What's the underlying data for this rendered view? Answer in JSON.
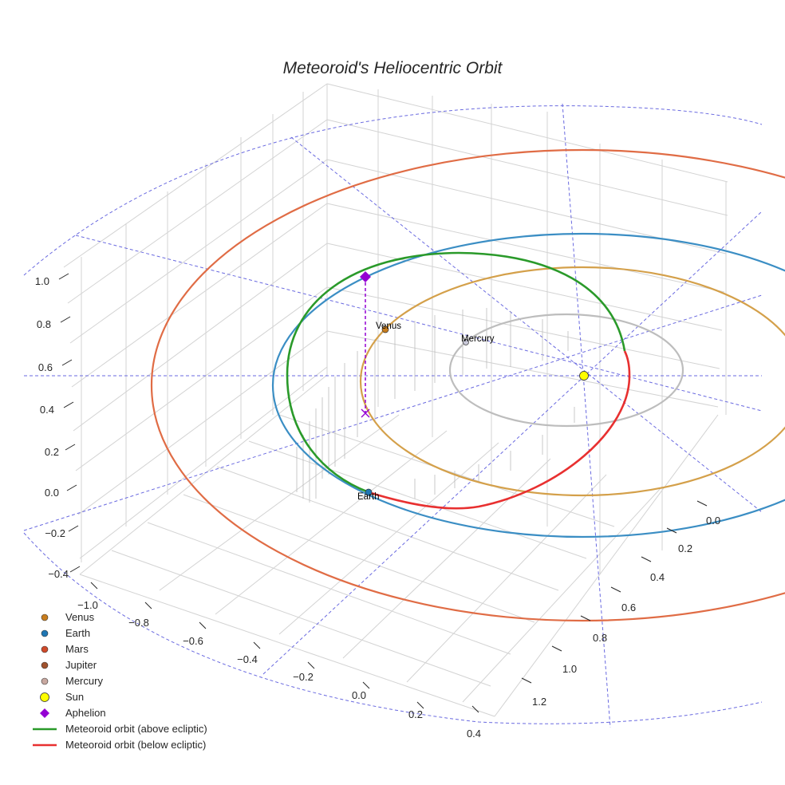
{
  "chart_data": {
    "type": "3d-orbit",
    "title": "Meteoroid's Heliocentric Orbit",
    "axes": {
      "x": {
        "ticks": [
          "−1.0",
          "−0.8",
          "−0.6",
          "−0.4",
          "−0.2",
          "0.0",
          "0.2",
          "0.4"
        ]
      },
      "y": {
        "ticks": [
          "0.0",
          "0.2",
          "0.4",
          "0.6",
          "0.8",
          "1.0",
          "1.2"
        ]
      },
      "z": {
        "ticks": [
          "1.0",
          "0.8",
          "0.6",
          "0.4",
          "0.2",
          "0.0",
          "−0.2",
          "−0.4"
        ]
      }
    },
    "colors": {
      "venus": "#d4a04a",
      "earth": "#3b8ec4",
      "mars": "#e06c45",
      "mercury": "#bdbdbd",
      "sun": "#ffff00",
      "above": "#2a9a2a",
      "below": "#e83030",
      "aphelion": "#9400d3",
      "grid_lines": "#6a6ae0"
    },
    "sun": {
      "name": "Sun",
      "position_au": [
        0,
        0,
        0
      ]
    },
    "planets": [
      {
        "name": "Mercury",
        "semi_major_axis_au": 0.39,
        "labeled": true
      },
      {
        "name": "Venus",
        "semi_major_axis_au": 0.72,
        "labeled": true
      },
      {
        "name": "Earth",
        "semi_major_axis_au": 1.0,
        "labeled": true
      },
      {
        "name": "Mars",
        "semi_major_axis_au": 1.52,
        "labeled": false
      }
    ],
    "meteoroid_orbit": {
      "segments": [
        {
          "name": "Meteoroid orbit (above ecliptic)",
          "side": "above"
        },
        {
          "name": "Meteoroid orbit (below ecliptic)",
          "side": "below"
        }
      ],
      "aphelion": {
        "name": "Aphelion"
      }
    },
    "legend": [
      {
        "label": "Venus",
        "kind": "dot",
        "color": "#c87d1e"
      },
      {
        "label": "Earth",
        "kind": "dot",
        "color": "#1f77b4"
      },
      {
        "label": "Mars",
        "kind": "dot",
        "color": "#d04a2a"
      },
      {
        "label": "Jupiter",
        "kind": "dot",
        "color": "#a0522d"
      },
      {
        "label": "Mercury",
        "kind": "dot",
        "color": "#c8a8a0"
      },
      {
        "label": "Sun",
        "kind": "sun",
        "color": "#ffff00"
      },
      {
        "label": "Aphelion",
        "kind": "diamond",
        "color": "#9400d3"
      },
      {
        "label": "Meteoroid orbit (above ecliptic)",
        "kind": "line",
        "color": "#2a9a2a"
      },
      {
        "label": "Meteoroid orbit (below ecliptic)",
        "kind": "line",
        "color": "#e83030"
      }
    ]
  }
}
